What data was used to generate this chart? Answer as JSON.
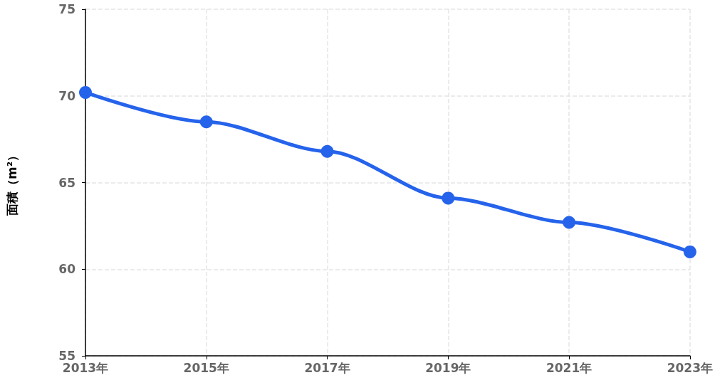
{
  "chart_data": {
    "type": "line",
    "ylabel": "面積（m²）",
    "categories": [
      "2013年",
      "2015年",
      "2017年",
      "2019年",
      "2021年",
      "2023年"
    ],
    "series": [
      {
        "color": "#2563eb",
        "values": [
          70.2,
          68.5,
          66.8,
          64.1,
          62.7,
          61.0
        ]
      }
    ],
    "ylim": [
      55,
      75
    ],
    "yticks": [
      55,
      60,
      65,
      70,
      75
    ],
    "grid": true,
    "marker": "circle",
    "line_style": "solid"
  }
}
